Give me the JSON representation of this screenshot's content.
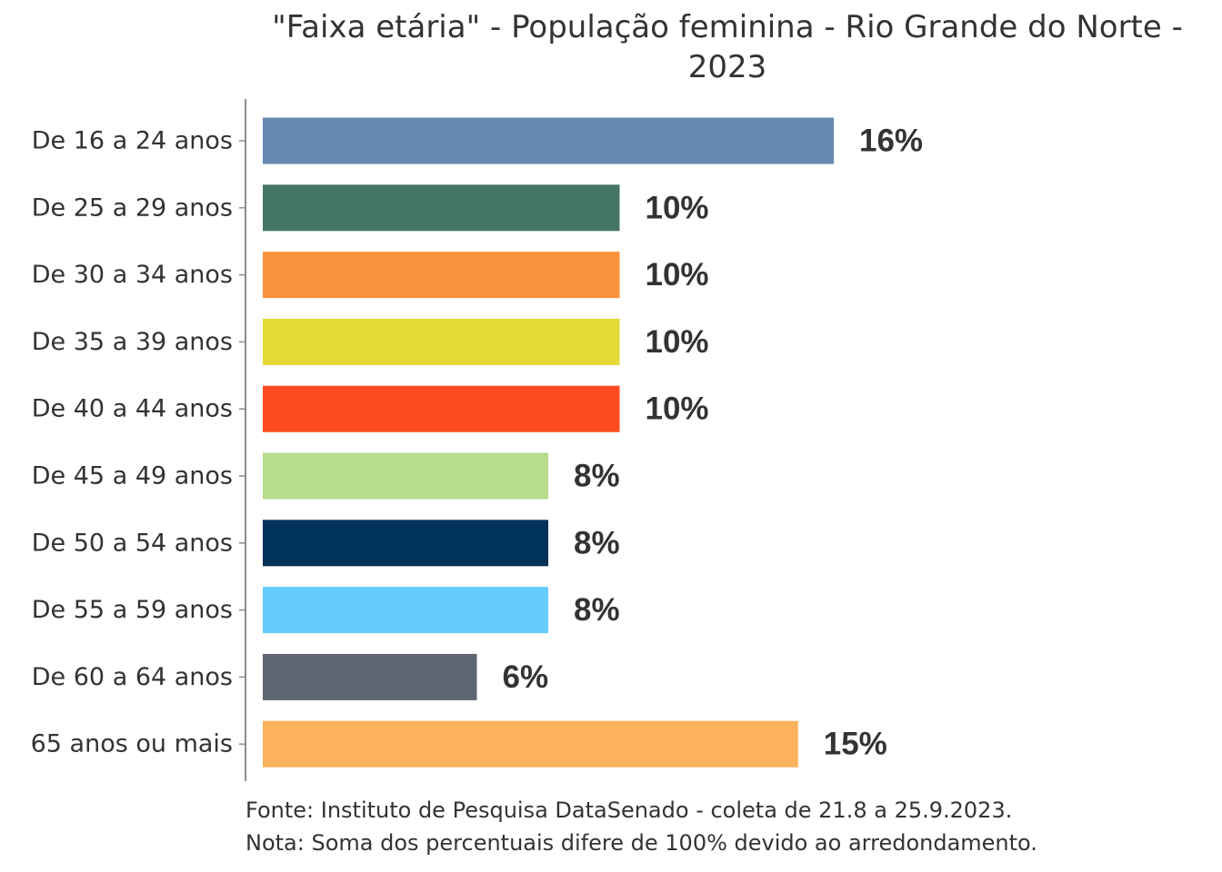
{
  "chart_data": {
    "type": "bar",
    "orientation": "horizontal",
    "title_lines": [
      "\"Faixa etária\" - População feminina - Rio Grande do Norte -",
      "2023"
    ],
    "categories": [
      "De 16 a 24 anos",
      "De 25 a 29 anos",
      "De 30 a 34 anos",
      "De 35 a 39 anos",
      "De 40 a 44 anos",
      "De 45 a 49 anos",
      "De 50 a 54 anos",
      "De 55 a 59 anos",
      "De 60 a 64 anos",
      "65 anos ou mais"
    ],
    "values": [
      16,
      10,
      10,
      10,
      10,
      8,
      8,
      8,
      6,
      15
    ],
    "value_labels": [
      "16%",
      "10%",
      "10%",
      "10%",
      "10%",
      "8%",
      "8%",
      "8%",
      "6%",
      "15%"
    ],
    "colors": [
      "#6689b0",
      "#457663",
      "#fb923c",
      "#e4d936",
      "#ff4b20",
      "#b8dc8e",
      "#00325a",
      "#66ccff",
      "#5e6470",
      "#fbb25a"
    ],
    "xlim": [
      0,
      22
    ],
    "xlabel": "",
    "ylabel": "",
    "grid": false,
    "legend": "none"
  },
  "footer": {
    "source": "Fonte: Instituto de Pesquisa DataSenado - coleta de 21.8 a 25.9.2023.",
    "note": "Nota: Soma dos percentuais difere de 100% devido ao arredondamento."
  }
}
